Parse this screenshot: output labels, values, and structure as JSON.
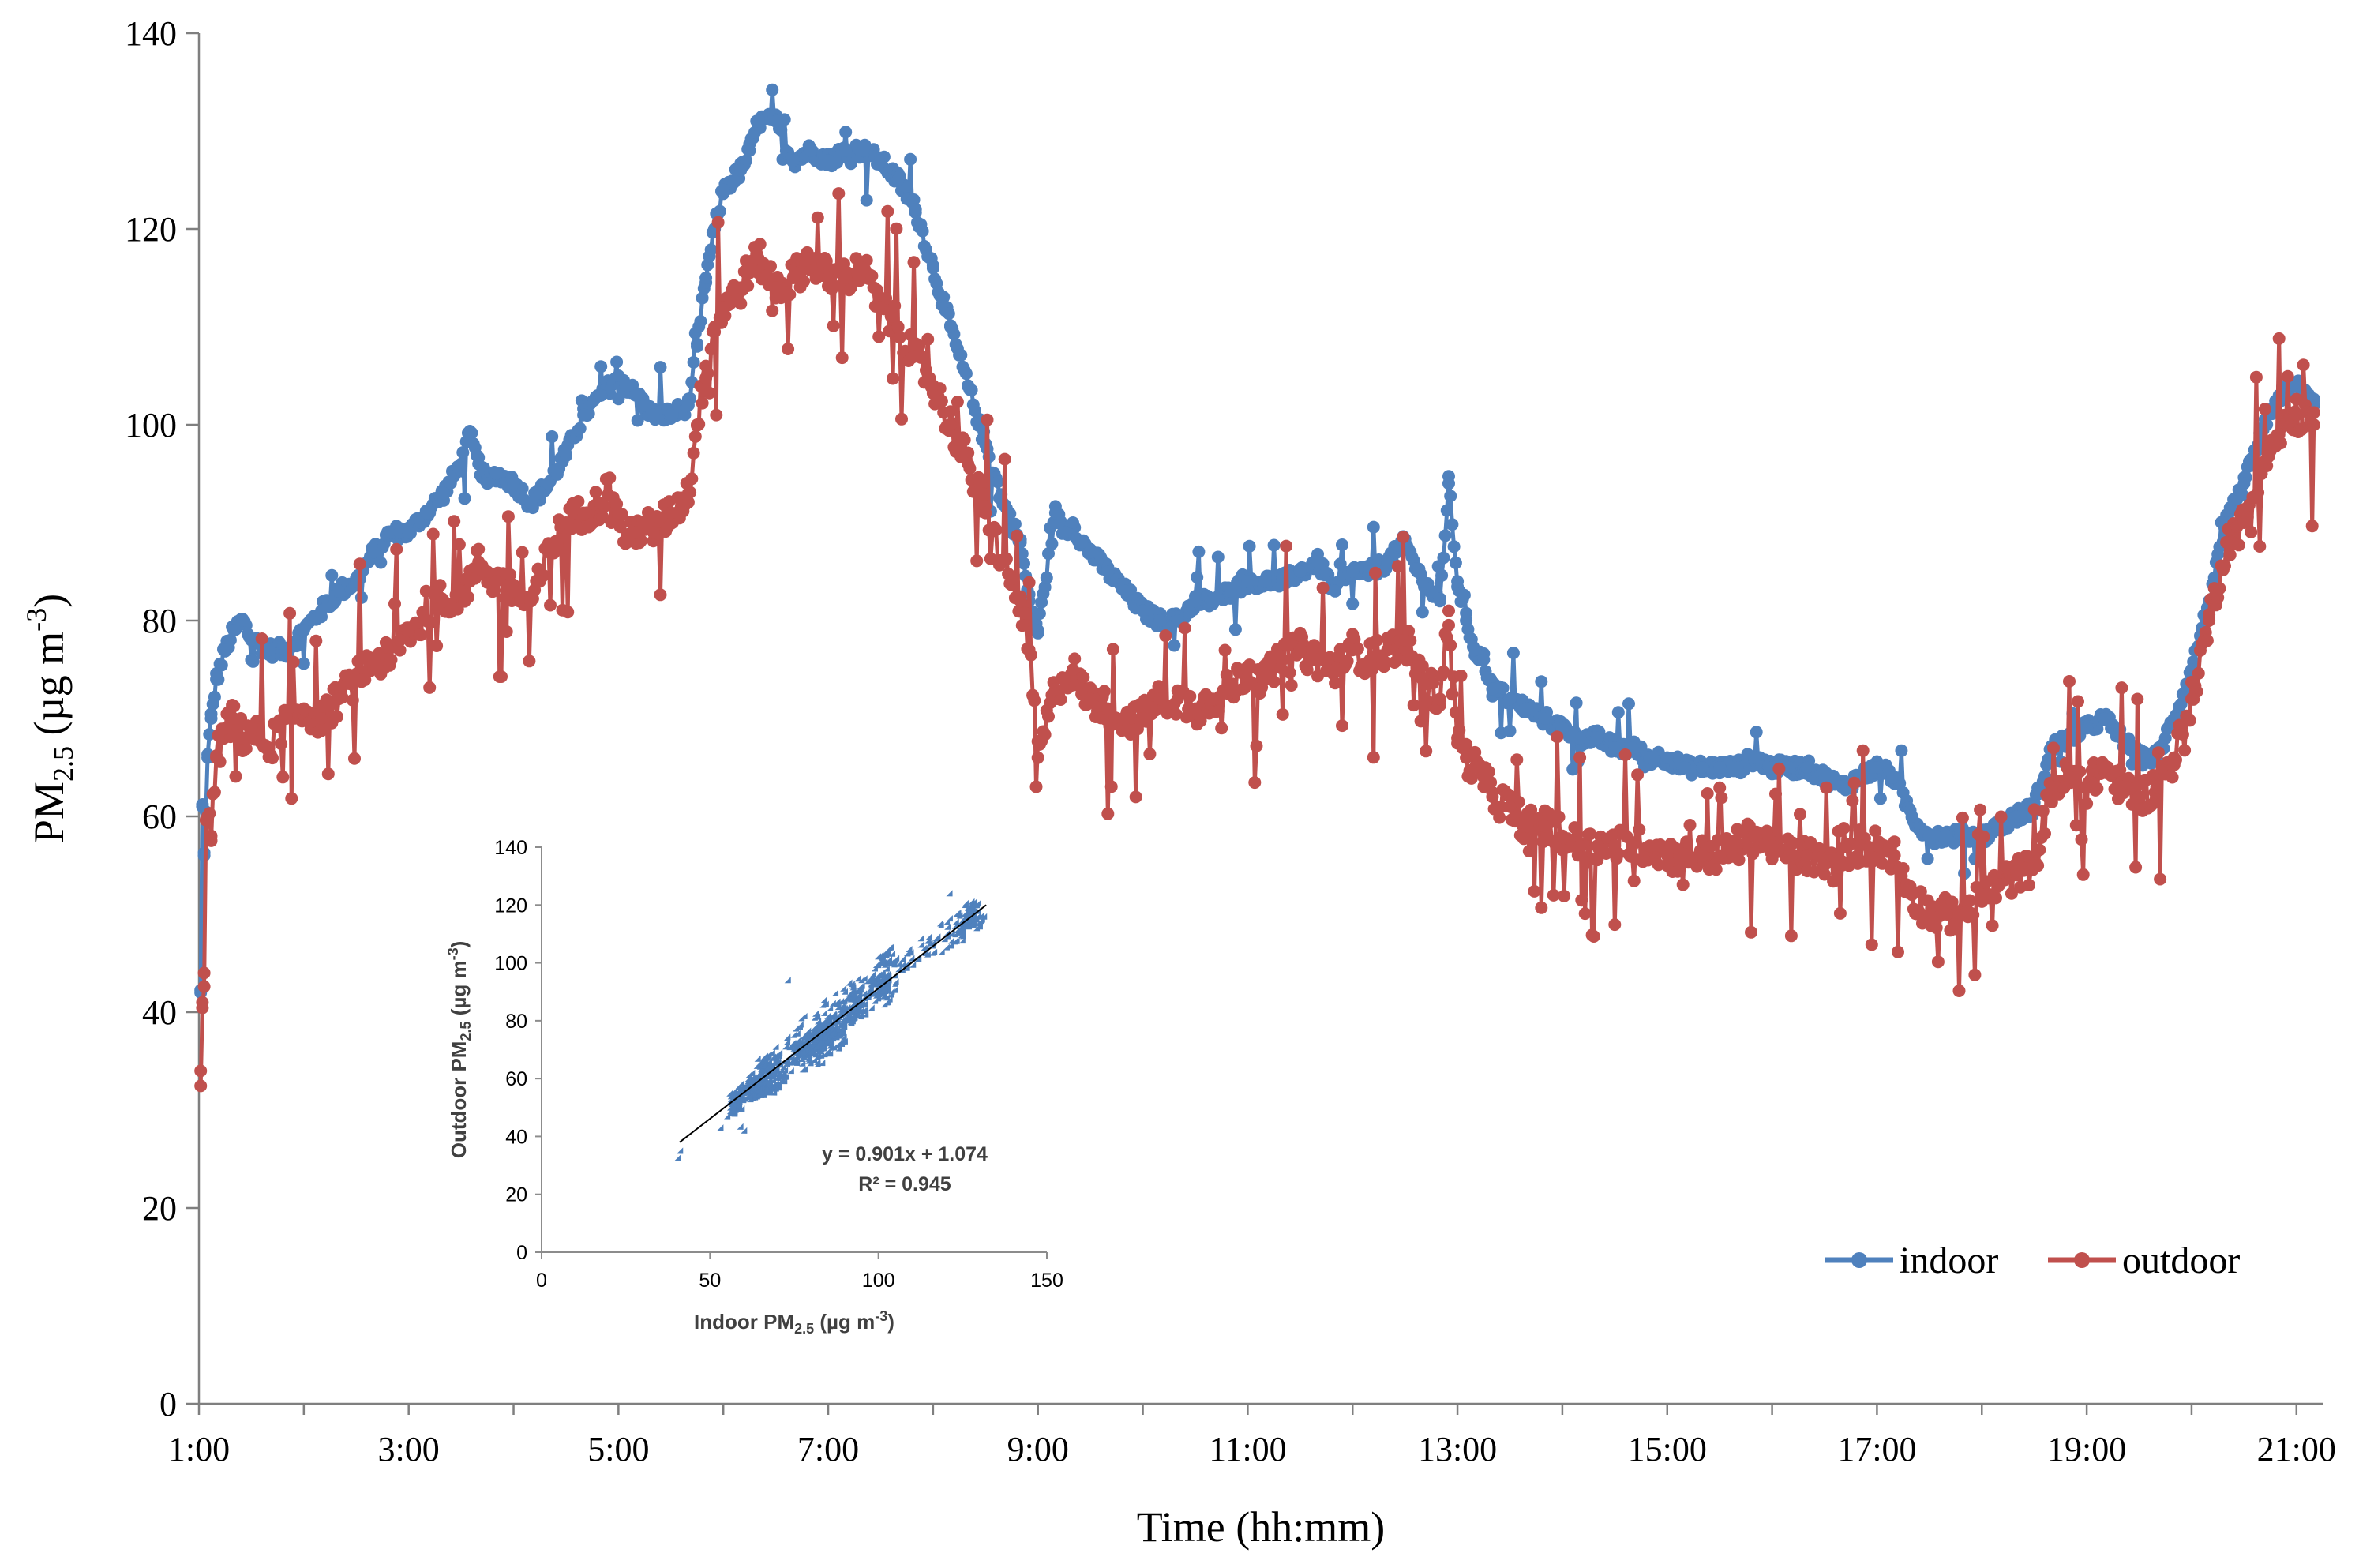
{
  "chart_data": [
    {
      "type": "line",
      "title": "",
      "xlabel": "Time (hh:mm)",
      "ylabel_main": "PM",
      "ylabel_sub": "2.5",
      "ylabel_rest": " (µg m",
      "ylabel_sup": "-3",
      "ylabel_close": ")",
      "xlim": [
        60,
        1275
      ],
      "ylim": [
        0,
        140
      ],
      "x_ticks": [
        60,
        180,
        300,
        420,
        540,
        660,
        780,
        900,
        1020,
        1140,
        1260
      ],
      "x_tick_labels": [
        "1:00",
        "3:00",
        "5:00",
        "7:00",
        "9:00",
        "11:00",
        "13:00",
        "15:00",
        "17:00",
        "19:00",
        "21:00"
      ],
      "y_ticks": [
        0,
        20,
        40,
        60,
        80,
        100,
        120,
        140
      ],
      "y_tick_labels": [
        "0",
        "20",
        "40",
        "60",
        "80",
        "100",
        "120",
        "140"
      ],
      "x_units": "minutes since 0:00",
      "legend_position": "bottom-right",
      "series": [
        {
          "name": "indoor",
          "color": "#4f81bd",
          "x": [
            61,
            62,
            63,
            65,
            67,
            70,
            75,
            80,
            85,
            90,
            100,
            110,
            120,
            130,
            140,
            150,
            160,
            170,
            175,
            180,
            190,
            200,
            210,
            215,
            220,
            225,
            230,
            240,
            250,
            255,
            260,
            270,
            280,
            290,
            300,
            305,
            310,
            315,
            320,
            330,
            340,
            345,
            350,
            355,
            360,
            370,
            375,
            380,
            390,
            400,
            410,
            420,
            430,
            440,
            450,
            460,
            470,
            480,
            490,
            500,
            510,
            520,
            530,
            535,
            540,
            550,
            555,
            560,
            565,
            570,
            580,
            590,
            600,
            610,
            620,
            630,
            640,
            650,
            660,
            670,
            680,
            690,
            700,
            710,
            720,
            730,
            740,
            750,
            760,
            770,
            775,
            780,
            785,
            790,
            795,
            800,
            810,
            820,
            830,
            840,
            850,
            860,
            870,
            880,
            890,
            900,
            910,
            920,
            930,
            940,
            950,
            960,
            970,
            980,
            990,
            1000,
            1010,
            1020,
            1030,
            1040,
            1050,
            1060,
            1070,
            1080,
            1090,
            1100,
            1110,
            1120,
            1130,
            1140,
            1150,
            1160,
            1170,
            1180,
            1190,
            1200,
            1210,
            1220,
            1230,
            1240,
            1250,
            1260,
            1270
          ],
          "values": [
            42,
            61,
            56,
            66,
            70,
            74,
            77,
            79,
            80,
            78,
            77,
            77,
            79,
            81,
            83,
            84,
            87,
            89,
            89,
            89,
            91,
            93,
            96,
            99,
            96,
            94,
            95,
            94,
            92,
            93,
            94,
            97,
            101,
            103,
            105,
            104,
            103,
            102,
            101,
            101,
            102,
            108,
            115,
            120,
            124,
            126,
            128,
            131,
            131,
            127,
            128,
            127,
            128,
            128,
            127,
            125,
            122,
            116,
            110,
            104,
            98,
            92,
            88,
            82,
            79,
            91,
            89,
            90,
            88,
            87,
            85,
            83,
            81,
            80,
            80,
            82,
            82,
            83,
            84,
            84,
            84,
            85,
            86,
            83,
            85,
            85,
            86,
            88,
            84,
            82,
            94,
            84,
            80,
            77,
            76,
            73,
            72,
            71,
            70,
            69,
            68,
            68,
            67,
            67,
            66,
            66,
            65,
            65,
            65,
            65,
            66,
            65,
            65,
            65,
            64,
            63,
            64,
            65,
            64,
            60,
            58,
            58,
            58,
            58,
            59,
            60,
            61,
            67,
            68,
            69,
            70,
            68,
            66,
            66,
            70,
            75,
            82,
            90,
            94,
            99,
            103,
            104,
            102
          ]
        },
        {
          "name": "outdoor",
          "color": "#c0504d",
          "x": [
            61,
            62,
            63,
            65,
            67,
            70,
            75,
            80,
            85,
            90,
            100,
            110,
            120,
            130,
            140,
            150,
            160,
            170,
            175,
            180,
            190,
            200,
            210,
            215,
            220,
            225,
            230,
            240,
            250,
            255,
            260,
            270,
            280,
            290,
            300,
            305,
            310,
            315,
            320,
            330,
            340,
            345,
            350,
            355,
            360,
            370,
            375,
            380,
            390,
            400,
            410,
            420,
            430,
            440,
            450,
            460,
            470,
            480,
            490,
            500,
            510,
            520,
            530,
            535,
            540,
            550,
            555,
            560,
            565,
            570,
            580,
            590,
            600,
            610,
            620,
            630,
            640,
            650,
            660,
            670,
            680,
            690,
            700,
            710,
            720,
            730,
            740,
            750,
            760,
            770,
            775,
            780,
            785,
            790,
            795,
            800,
            810,
            820,
            830,
            840,
            850,
            860,
            870,
            880,
            890,
            900,
            910,
            920,
            930,
            940,
            950,
            960,
            970,
            980,
            990,
            1000,
            1010,
            1020,
            1030,
            1040,
            1050,
            1060,
            1070,
            1080,
            1090,
            1100,
            1110,
            1120,
            1130,
            1140,
            1150,
            1160,
            1170,
            1180,
            1190,
            1200,
            1210,
            1220,
            1230,
            1240,
            1250,
            1260,
            1270
          ],
          "values": [
            34,
            41,
            44,
            60,
            58,
            66,
            69,
            70,
            68,
            69,
            67,
            70,
            71,
            70,
            72,
            74,
            76,
            76,
            78,
            79,
            80,
            82,
            83,
            84,
            86,
            85,
            84,
            83,
            82,
            84,
            87,
            90,
            91,
            92,
            91,
            88,
            89,
            90,
            89,
            91,
            93,
            100,
            106,
            110,
            112,
            114,
            116,
            117,
            114,
            115,
            117,
            115,
            115,
            116,
            112,
            110,
            107,
            104,
            100,
            96,
            91,
            86,
            82,
            77,
            66,
            73,
            74,
            75,
            73,
            72,
            71,
            70,
            70,
            72,
            72,
            71,
            72,
            73,
            75,
            74,
            76,
            77,
            76,
            75,
            77,
            76,
            77,
            78,
            74,
            72,
            81,
            68,
            66,
            65,
            64,
            62,
            61,
            59,
            59,
            58,
            57,
            57,
            57,
            57,
            57,
            56,
            56,
            56,
            56,
            57,
            58,
            57,
            56,
            56,
            55,
            55,
            57,
            57,
            56,
            52,
            50,
            50,
            50,
            52,
            53,
            54,
            55,
            63,
            64,
            63,
            65,
            63,
            62,
            63,
            66,
            72,
            80,
            88,
            90,
            96,
            99,
            101,
            100
          ]
        }
      ]
    },
    {
      "type": "scatter",
      "title": "",
      "xlabel_main": "Indoor PM",
      "xlabel_sub": "2.5",
      "xlabel_rest": " (µg m",
      "xlabel_sup": "-3",
      "xlabel_close": ")",
      "ylabel_main": "Outdoor PM",
      "ylabel_sub": "2.5",
      "ylabel_rest": " (µg m",
      "ylabel_sup": "-3",
      "ylabel_close": ")",
      "xlim": [
        0,
        150
      ],
      "ylim": [
        0,
        140
      ],
      "x_ticks": [
        0,
        50,
        100,
        150
      ],
      "x_tick_labels": [
        "0",
        "50",
        "100",
        "150"
      ],
      "y_ticks": [
        0,
        20,
        40,
        60,
        80,
        100,
        120,
        140
      ],
      "y_tick_labels": [
        "0",
        "20",
        "40",
        "60",
        "80",
        "100",
        "120",
        "140"
      ],
      "point_color": "#4f81bd",
      "fit": {
        "slope": 0.901,
        "intercept": 1.074,
        "x_range": [
          41,
          132
        ]
      },
      "equation_label": "y = 0.901x + 1.074",
      "r2_label": "R² = 0.945",
      "outliers": [
        {
          "x": 42,
          "y": 34
        },
        {
          "x": 61,
          "y": 41
        },
        {
          "x": 54,
          "y": 42
        },
        {
          "x": 74,
          "y": 93
        },
        {
          "x": 122,
          "y": 123
        }
      ]
    }
  ]
}
